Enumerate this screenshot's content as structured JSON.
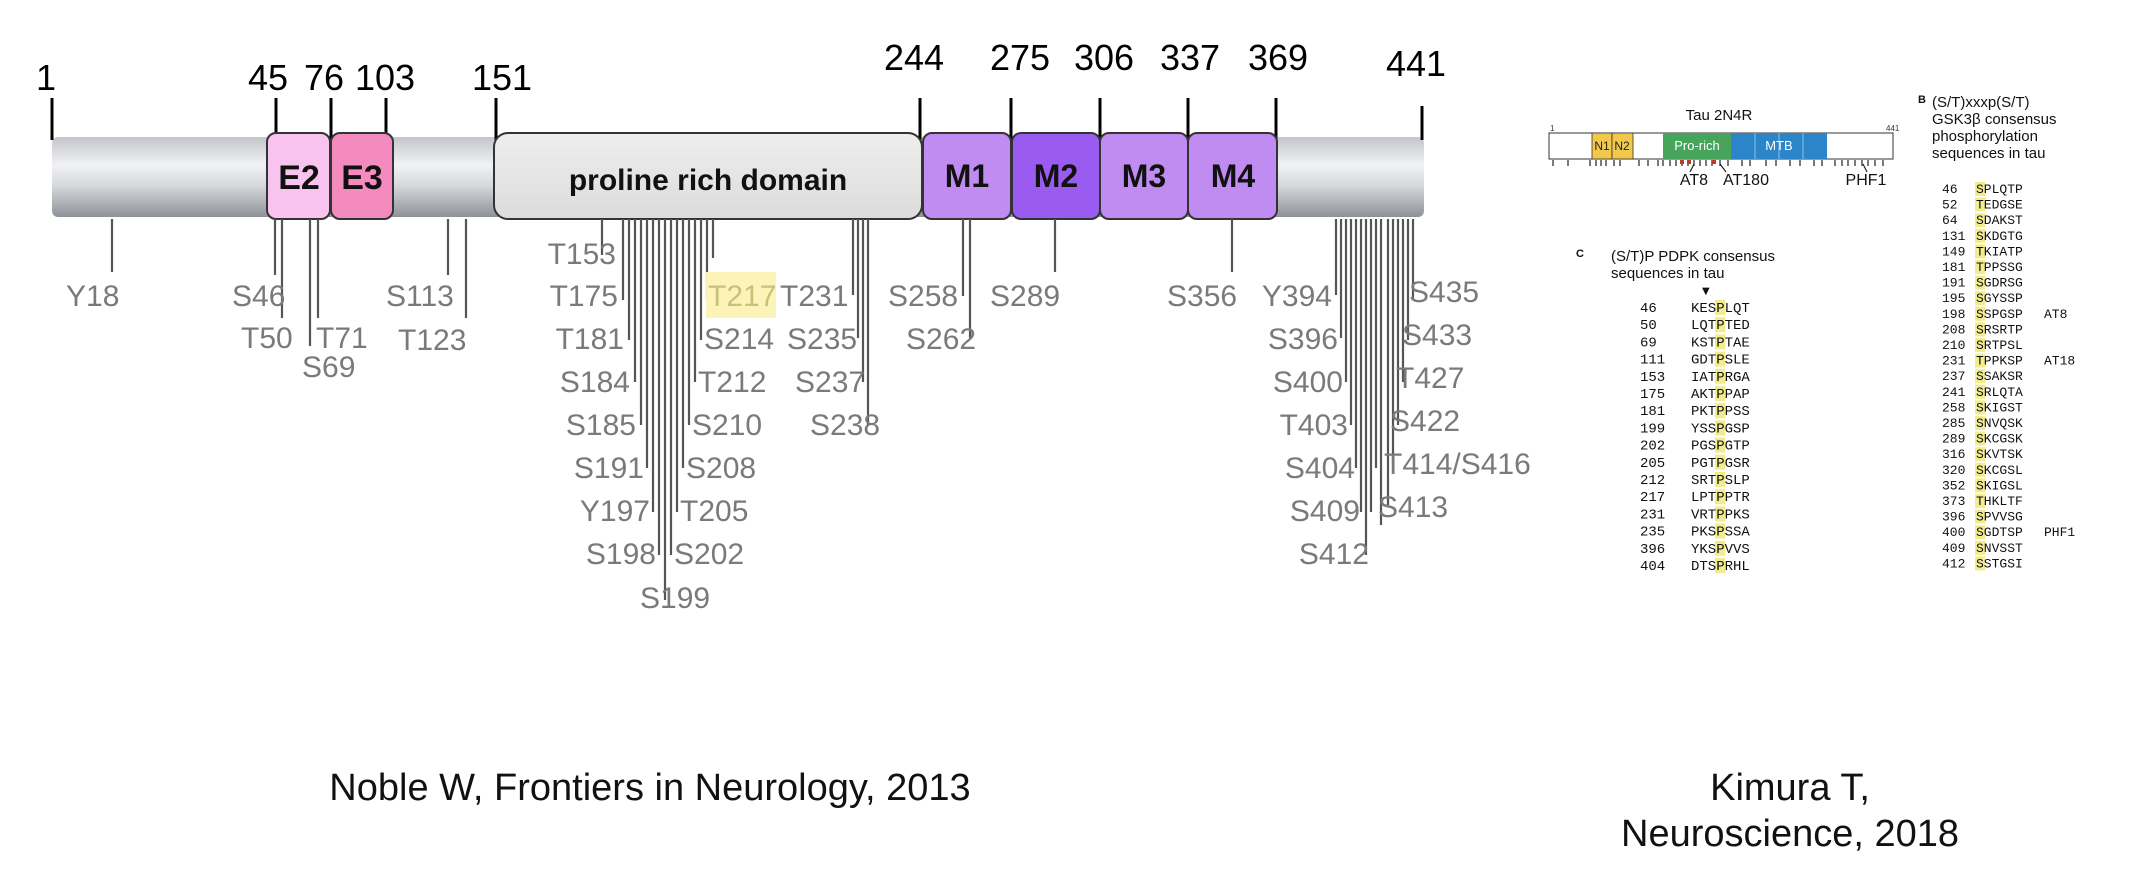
{
  "tau_map": {
    "positions": [
      "1",
      "45",
      "76",
      "103",
      "151",
      "244",
      "275",
      "306",
      "337",
      "369",
      "441"
    ],
    "domains": {
      "e2": "E2",
      "e3": "E3",
      "prd": "proline rich domain",
      "m1": "M1",
      "m2": "M2",
      "m3": "M3",
      "m4": "M4"
    },
    "sites": [
      "Y18",
      "S46",
      "T50",
      "T71",
      "S69",
      "S113",
      "T123",
      "T153",
      "T175",
      "T181",
      "S184",
      "S185",
      "S191",
      "Y197",
      "S198",
      "S199",
      "T217",
      "S214",
      "T212",
      "S210",
      "S208",
      "T205",
      "S202",
      "T231",
      "S235",
      "S237",
      "S238",
      "S258",
      "S262",
      "S289",
      "S356",
      "Y394",
      "S396",
      "S400",
      "T403",
      "S404",
      "S409",
      "S412",
      "S435",
      "S433",
      "T427",
      "S422",
      "T414/S416",
      "S413"
    ],
    "highlight_color": "#fbf3b8"
  },
  "citations": {
    "left": "Noble W, Frontiers in Neurology, 2013",
    "right_line1": "Kimura T,",
    "right_line2": "Neuroscience, 2018"
  },
  "panel_b": {
    "letter": "B",
    "title": [
      "(S/T)xxxp(S/T)",
      "GSK3β consensus",
      "phosphorylation",
      "sequences in tau"
    ],
    "schematic": {
      "label": "Tau 2N4R",
      "start": "1",
      "end": "441",
      "n1": "N1",
      "n2": "N2",
      "prorich": "Pro-rich",
      "mtb": "MTB",
      "at8": "AT8",
      "at180": "AT180",
      "phf1": "PHF1"
    },
    "rows": [
      {
        "pos": "46",
        "seq": "SPLQTP",
        "note": ""
      },
      {
        "pos": "52",
        "seq": "TEDGSE",
        "note": ""
      },
      {
        "pos": "64",
        "seq": "SDAKST",
        "note": ""
      },
      {
        "pos": "131",
        "seq": "SKDGTG",
        "note": ""
      },
      {
        "pos": "149",
        "seq": "TKIATP",
        "note": ""
      },
      {
        "pos": "181",
        "seq": "TPPSSG",
        "note": ""
      },
      {
        "pos": "191",
        "seq": "SGDRSG",
        "note": ""
      },
      {
        "pos": "195",
        "seq": "SGYSSP",
        "note": ""
      },
      {
        "pos": "198",
        "seq": "SSPGSP",
        "note": "AT8"
      },
      {
        "pos": "208",
        "seq": "SRSRTP",
        "note": ""
      },
      {
        "pos": "210",
        "seq": "SRTPSL",
        "note": ""
      },
      {
        "pos": "231",
        "seq": "TPPKSP",
        "note": "AT18"
      },
      {
        "pos": "237",
        "seq": "SSAKSR",
        "note": ""
      },
      {
        "pos": "241",
        "seq": "SRLQTA",
        "note": ""
      },
      {
        "pos": "258",
        "seq": "SKIGST",
        "note": ""
      },
      {
        "pos": "285",
        "seq": "SNVQSK",
        "note": ""
      },
      {
        "pos": "289",
        "seq": "SKCGSK",
        "note": ""
      },
      {
        "pos": "316",
        "seq": "SKVTSK",
        "note": ""
      },
      {
        "pos": "320",
        "seq": "SKCGSL",
        "note": ""
      },
      {
        "pos": "352",
        "seq": "SKIGSL",
        "note": ""
      },
      {
        "pos": "373",
        "seq": "THKLTF",
        "note": ""
      },
      {
        "pos": "396",
        "seq": "SPVVSG",
        "note": ""
      },
      {
        "pos": "400",
        "seq": "SGDTSP",
        "note": "PHF1"
      },
      {
        "pos": "409",
        "seq": "SNVSST",
        "note": ""
      },
      {
        "pos": "412",
        "seq": "SSTGSI",
        "note": ""
      }
    ]
  },
  "panel_c": {
    "letter": "C",
    "title": [
      "(S/T)P PDPK consensus",
      "sequences in tau"
    ],
    "rows": [
      {
        "pos": "46",
        "seq": "KESPLQT"
      },
      {
        "pos": "50",
        "seq": "LQTPTED"
      },
      {
        "pos": "69",
        "seq": "KSTPTAE"
      },
      {
        "pos": "111",
        "seq": "GDTPSLE"
      },
      {
        "pos": "153",
        "seq": "IATPRGA"
      },
      {
        "pos": "175",
        "seq": "AKTPPAP"
      },
      {
        "pos": "181",
        "seq": "PKTPPSS"
      },
      {
        "pos": "199",
        "seq": "YSSPGSP"
      },
      {
        "pos": "202",
        "seq": "PGSPGTP"
      },
      {
        "pos": "205",
        "seq": "PGTPGSR"
      },
      {
        "pos": "212",
        "seq": "SRTPSLP"
      },
      {
        "pos": "217",
        "seq": "LPTPPTR"
      },
      {
        "pos": "231",
        "seq": "VRTPPKS"
      },
      {
        "pos": "235",
        "seq": "PKSPSSA"
      },
      {
        "pos": "396",
        "seq": "YKSPVVS"
      },
      {
        "pos": "404",
        "seq": "DTSPRHL"
      }
    ]
  }
}
